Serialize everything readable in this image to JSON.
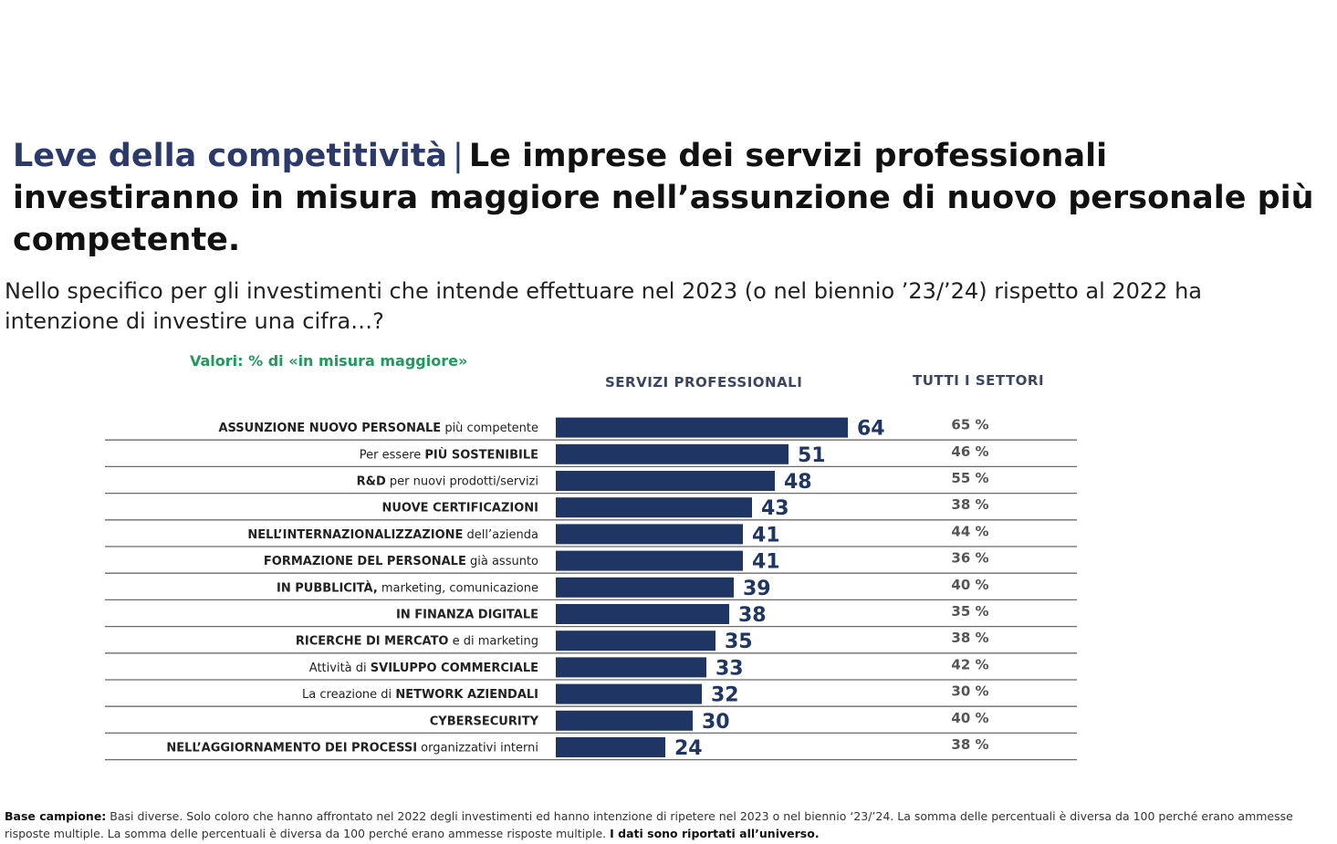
{
  "title": {
    "accent": "Leve della competitività",
    "separator": "|",
    "main": "Le imprese dei servizi professionali investiranno in misura maggiore nell’assunzione di nuovo personale più competente."
  },
  "question": "Nello specifico per gli investimenti che intende effettuare nel 2023 (o nel biennio ’23/’24) rispetto al 2022 ha intenzione di investire una cifra…?",
  "values_note": "Valori: % di «in misura maggiore»",
  "columns": {
    "sector": "SERVIZI PROFESSIONALI",
    "all": "TUTTI I SETTORI"
  },
  "colors": {
    "bar": "#1f3564",
    "accent_title": "#2b3a6b",
    "note_green": "#1f9a5c",
    "row_line": "#6b6b6b"
  },
  "chart_data": {
    "type": "bar",
    "orientation": "horizontal",
    "categories": [
      "ASSUNZIONE NUOVO PERSONALE più competente",
      "Per essere PIÙ SOSTENIBILE",
      "R&D per nuovi prodotti/servizi",
      "NUOVE CERTIFICAZIONI",
      "NELL’INTERNAZIONALIZZAZIONE dell’azienda",
      "FORMAZIONE DEL PERSONALE già assunto",
      "IN PUBBLICITÀ, marketing, comunicazione",
      "IN FINANZA DIGITALE",
      "RICERCHE DI MERCATO e di marketing",
      "Attività di SVILUPPO COMMERCIALE",
      "La creazione di NETWORK AZIENDALI",
      "CYBERSECURITY",
      "NELL’AGGIORNAMENTO DEI PROCESSI organizzativi interni"
    ],
    "label_parts": [
      [
        [
          "ASSUNZIONE NUOVO PERSONALE",
          true
        ],
        [
          " più competente",
          false
        ]
      ],
      [
        [
          "Per essere ",
          false
        ],
        [
          "PIÙ SOSTENIBILE",
          true
        ]
      ],
      [
        [
          "R&D",
          true
        ],
        [
          " per nuovi prodotti/servizi",
          false
        ]
      ],
      [
        [
          "NUOVE CERTIFICAZIONI",
          true
        ]
      ],
      [
        [
          "NELL’INTERNAZIONALIZZAZIONE",
          true
        ],
        [
          " dell’azienda",
          false
        ]
      ],
      [
        [
          "FORMAZIONE DEL PERSONALE",
          true
        ],
        [
          " già assunto",
          false
        ]
      ],
      [
        [
          "IN PUBBLICITÀ,",
          true
        ],
        [
          " marketing, comunicazione",
          false
        ]
      ],
      [
        [
          "IN FINANZA DIGITALE",
          true
        ]
      ],
      [
        [
          "RICERCHE DI MERCATO",
          true
        ],
        [
          " e di marketing",
          false
        ]
      ],
      [
        [
          "Attività di ",
          false
        ],
        [
          "SVILUPPO COMMERCIALE",
          true
        ]
      ],
      [
        [
          "La creazione di ",
          false
        ],
        [
          "NETWORK AZIENDALI",
          true
        ]
      ],
      [
        [
          "CYBERSECURITY",
          true
        ]
      ],
      [
        [
          "NELL’AGGIORNAMENTO DEI PROCESSI",
          true
        ],
        [
          " organizzativi interni",
          false
        ]
      ]
    ],
    "series": [
      {
        "name": "SERVIZI PROFESSIONALI",
        "values": [
          64,
          51,
          48,
          43,
          41,
          41,
          39,
          38,
          35,
          33,
          32,
          30,
          24
        ]
      },
      {
        "name": "TUTTI I SETTORI",
        "values": [
          65,
          46,
          55,
          38,
          44,
          36,
          40,
          35,
          38,
          42,
          30,
          40,
          38
        ]
      }
    ],
    "all_labels": [
      "65 %",
      "46 %",
      "55 %",
      "38 %",
      "44 %",
      "36 %",
      "40 %",
      "35 %",
      "38 %",
      "42 %",
      "30 %",
      "40 %",
      "38 %"
    ],
    "xlim": [
      0,
      100
    ]
  },
  "footnote": {
    "lead": "Base campione:",
    "body": " Basi diverse. Solo coloro che hanno affrontato nel 2022 degli investimenti ed hanno intenzione di ripetere nel 2023 o nel biennio ‘23/’24. La somma delle percentuali è diversa da 100 perché erano ammesse risposte multiple.  La somma delle percentuali è diversa da 100 perché erano ammesse risposte multiple. ",
    "tail": "I dati sono riportati all’universo."
  }
}
